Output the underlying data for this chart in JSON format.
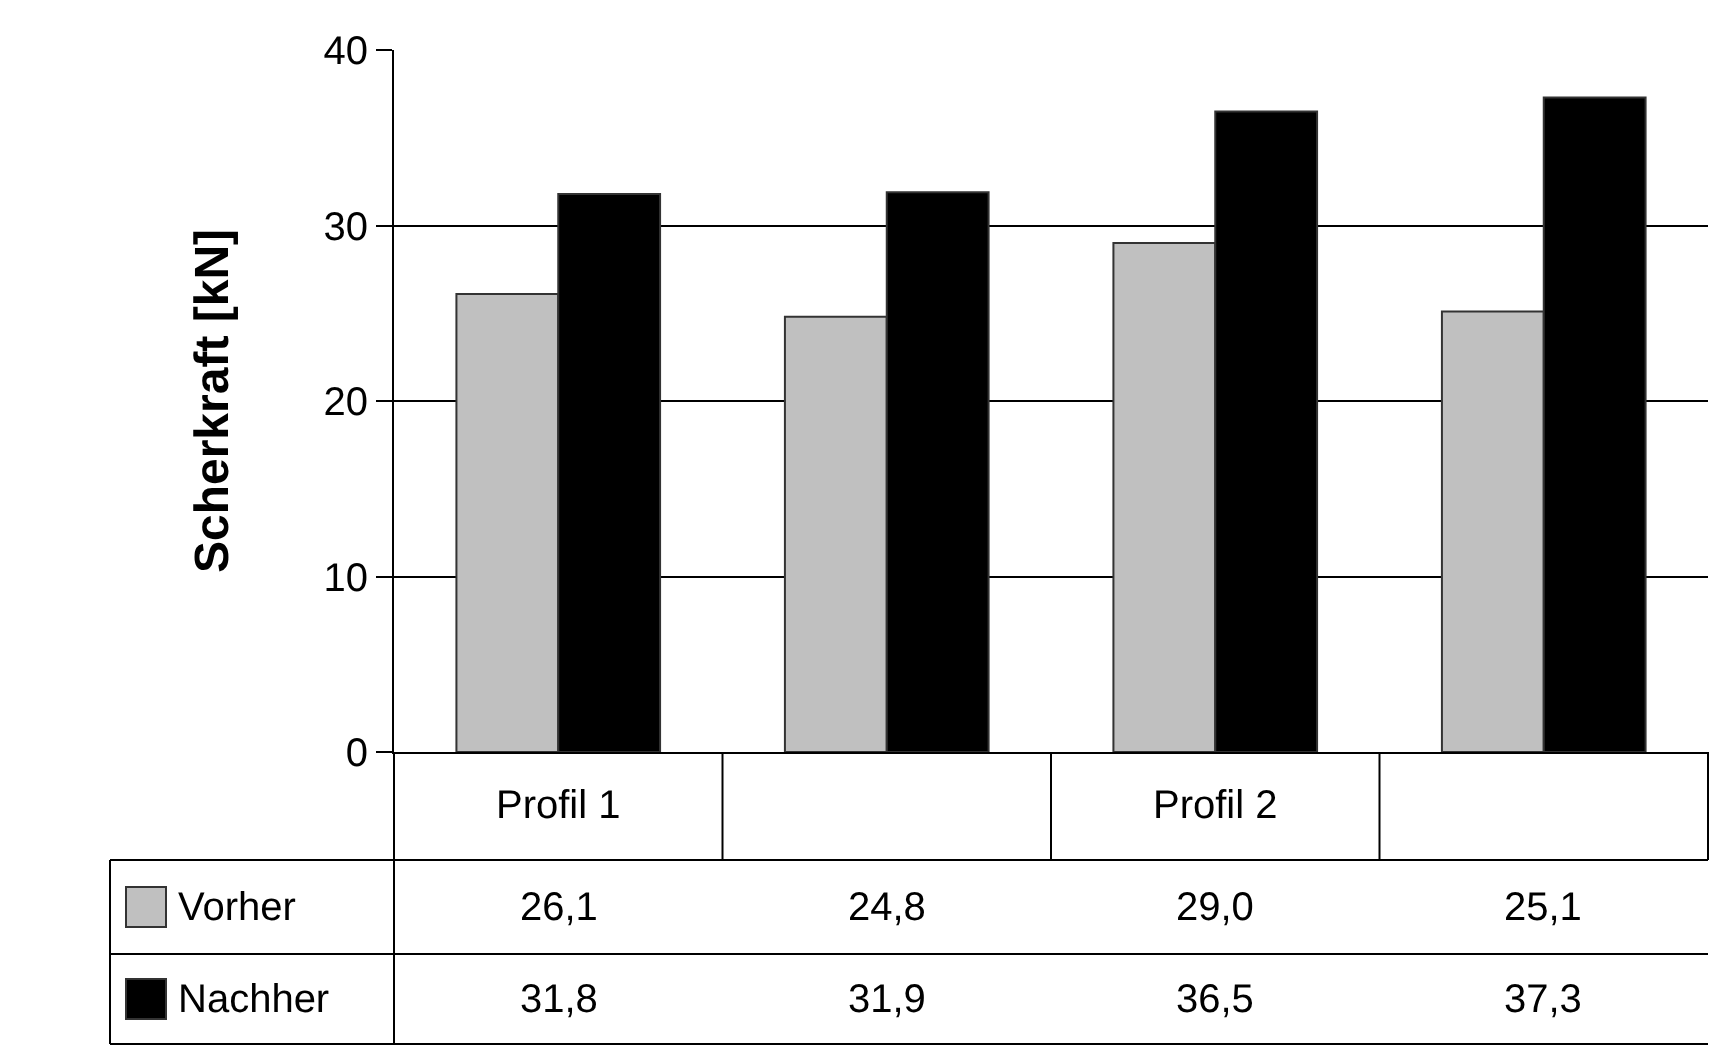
{
  "chart_data": {
    "type": "bar",
    "ylabel": "Scherkraft [kN]",
    "categories": [
      "Profil 1",
      null,
      "Profil 2",
      null
    ],
    "series": [
      {
        "name": "Vorher",
        "color": "#c0c0c0",
        "values": [
          26.1,
          24.8,
          29.0,
          25.1
        ],
        "value_labels": [
          "26,1",
          "24,8",
          "29,0",
          "25,1"
        ]
      },
      {
        "name": "Nachher",
        "color": "#000000",
        "values": [
          31.8,
          31.9,
          36.5,
          37.3
        ],
        "value_labels": [
          "31,8",
          "31,9",
          "36,5",
          "37,3"
        ]
      }
    ],
    "ylim": [
      0,
      40
    ],
    "yticks": [
      0,
      10,
      20,
      30,
      40
    ],
    "grid": "y",
    "legend": "bottom left"
  }
}
